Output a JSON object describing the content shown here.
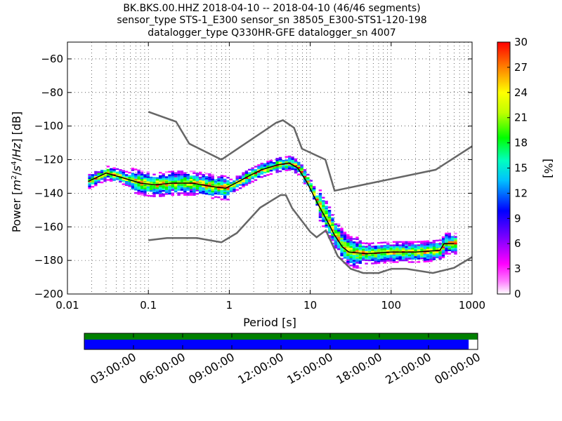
{
  "title_lines": [
    "BK.BKS.00.HHZ   2018-04-10 -- 2018-04-10  (46/46 segments)",
    "sensor_type STS-1_E300 sensor_sn 38505_E300-STS1-120-198",
    "datalogger_type Q330HR-GFE datalogger_sn 4007"
  ],
  "chart_data": [
    {
      "type": "heatmap",
      "xlabel": "Period [s]",
      "ylabel": "Power [m²/s⁴/Hz] [dB]",
      "xscale": "log",
      "xlim": [
        0.01,
        1000
      ],
      "ylim": [
        -200,
        -50
      ],
      "xticks": [
        {
          "v": 0.01,
          "label": "0.01"
        },
        {
          "v": 0.1,
          "label": "0.1"
        },
        {
          "v": 1,
          "label": "1"
        },
        {
          "v": 10,
          "label": "10"
        },
        {
          "v": 100,
          "label": "100"
        },
        {
          "v": 1000,
          "label": "1000"
        }
      ],
      "yticks": [
        {
          "v": -60,
          "label": "−60"
        },
        {
          "v": -80,
          "label": "−80"
        },
        {
          "v": -100,
          "label": "−100"
        },
        {
          "v": -120,
          "label": "−120"
        },
        {
          "v": -140,
          "label": "−140"
        },
        {
          "v": -160,
          "label": "−160"
        },
        {
          "v": -180,
          "label": "−180"
        },
        {
          "v": -200,
          "label": "−200"
        }
      ],
      "grid": true,
      "colorbar": {
        "label": "[%]",
        "range": [
          0,
          30
        ],
        "ticks": [
          {
            "v": 0,
            "label": "0"
          },
          {
            "v": 3,
            "label": "3"
          },
          {
            "v": 6,
            "label": "6"
          },
          {
            "v": 9,
            "label": "9"
          },
          {
            "v": 12,
            "label": "12"
          },
          {
            "v": 15,
            "label": "15"
          },
          {
            "v": 18,
            "label": "18"
          },
          {
            "v": 21,
            "label": "21"
          },
          {
            "v": 24,
            "label": "24"
          },
          {
            "v": 27,
            "label": "27"
          },
          {
            "v": 30,
            "label": "30"
          }
        ]
      },
      "nlnm": [
        [
          0.1,
          -168
        ],
        [
          0.17,
          -166.7
        ],
        [
          0.4,
          -166.7
        ],
        [
          0.8,
          -169.2
        ],
        [
          1.24,
          -163.7
        ],
        [
          2.4,
          -148.6
        ],
        [
          4.3,
          -141.1
        ],
        [
          5.0,
          -141.1
        ],
        [
          6.0,
          -149
        ],
        [
          10.0,
          -163
        ],
        [
          12.0,
          -166.2
        ],
        [
          15.6,
          -162.1
        ],
        [
          21.9,
          -177.5
        ],
        [
          31.6,
          -185
        ],
        [
          45.0,
          -187.5
        ],
        [
          70.0,
          -187.5
        ],
        [
          101.0,
          -185
        ],
        [
          154.0,
          -185
        ],
        [
          328.0,
          -187.5
        ],
        [
          600.0,
          -184.4
        ],
        [
          1000.0,
          -178
        ]
      ],
      "nhnm": [
        [
          0.1,
          -91.5
        ],
        [
          0.22,
          -97.4
        ],
        [
          0.32,
          -110.5
        ],
        [
          0.8,
          -120
        ],
        [
          3.8,
          -98
        ],
        [
          4.6,
          -96.5
        ],
        [
          6.3,
          -101
        ],
        [
          7.9,
          -113.5
        ],
        [
          15.4,
          -120
        ],
        [
          20.0,
          -138.5
        ],
        [
          354.8,
          -126
        ],
        [
          1000.0,
          -112
        ]
      ],
      "mode": [
        [
          0.018,
          -133
        ],
        [
          0.03,
          -128
        ],
        [
          0.05,
          -131
        ],
        [
          0.08,
          -134
        ],
        [
          0.12,
          -135
        ],
        [
          0.2,
          -134
        ],
        [
          0.35,
          -134
        ],
        [
          0.6,
          -136
        ],
        [
          0.9,
          -137
        ],
        [
          1.2,
          -134
        ],
        [
          1.7,
          -130
        ],
        [
          2.5,
          -126
        ],
        [
          4.0,
          -123
        ],
        [
          5.5,
          -122
        ],
        [
          7.0,
          -125
        ],
        [
          9.0,
          -133
        ],
        [
          12.0,
          -145
        ],
        [
          16.0,
          -156
        ],
        [
          20.0,
          -165
        ],
        [
          25.0,
          -172
        ],
        [
          30.0,
          -175
        ],
        [
          50.0,
          -176
        ],
        [
          100.0,
          -175
        ],
        [
          200.0,
          -175
        ],
        [
          400.0,
          -174
        ],
        [
          450.0,
          -170
        ],
        [
          600.0,
          -170
        ]
      ]
    },
    {
      "type": "timeline",
      "xticks": [
        "03:00:00",
        "06:00:00",
        "09:00:00",
        "12:00:00",
        "15:00:00",
        "18:00:00",
        "21:00:00",
        "00:00:00"
      ],
      "available_fraction": 0.977,
      "colors": {
        "availability": "#008000",
        "processed": "#0000ff"
      }
    }
  ]
}
